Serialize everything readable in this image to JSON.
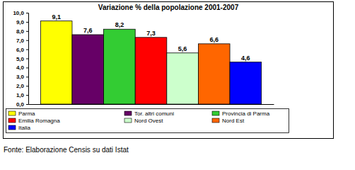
{
  "chart_data": {
    "type": "bar",
    "title": "Variazione % della popolazione 2001-2007",
    "source": "Fonte: Elaborazione Censis su dati Istat",
    "categories": [
      null
    ],
    "series": [
      {
        "name": "Parma",
        "color": "#ffff00",
        "values": [
          9.1
        ],
        "value_labels": [
          "9,1"
        ]
      },
      {
        "name": "Tor. altri comuni",
        "color": "#660066",
        "values": [
          7.6
        ],
        "value_labels": [
          "7,6"
        ]
      },
      {
        "name": "Provincia di Parma",
        "color": "#33cc33",
        "values": [
          8.2
        ],
        "value_labels": [
          "8,2"
        ]
      },
      {
        "name": "Emilia Romagna",
        "color": "#ff0000",
        "values": [
          7.3
        ],
        "value_labels": [
          "7,3"
        ]
      },
      {
        "name": "Nord Ovest",
        "color": "#ccffcc",
        "values": [
          5.6
        ],
        "value_labels": [
          "5,6"
        ]
      },
      {
        "name": "Nord Est",
        "color": "#ff6600",
        "values": [
          6.6
        ],
        "value_labels": [
          "6,6"
        ]
      },
      {
        "name": "Italia",
        "color": "#0000ff",
        "values": [
          4.6
        ],
        "value_labels": [
          "4,6"
        ]
      }
    ],
    "ylim": [
      0,
      10
    ],
    "yticks": [
      {
        "value": 0,
        "label": "0,0"
      },
      {
        "value": 1,
        "label": "1,0"
      },
      {
        "value": 2,
        "label": "2,0"
      },
      {
        "value": 3,
        "label": "3,0"
      },
      {
        "value": 4,
        "label": "4,0"
      },
      {
        "value": 5,
        "label": "5,0"
      },
      {
        "value": 6,
        "label": "6,0"
      },
      {
        "value": 7,
        "label": "7,0"
      },
      {
        "value": 8,
        "label": "8,0"
      },
      {
        "value": 9,
        "label": "9,0"
      },
      {
        "value": 10,
        "label": "10,0"
      }
    ],
    "grid": false,
    "data_labels": true,
    "legend": "bottom"
  }
}
